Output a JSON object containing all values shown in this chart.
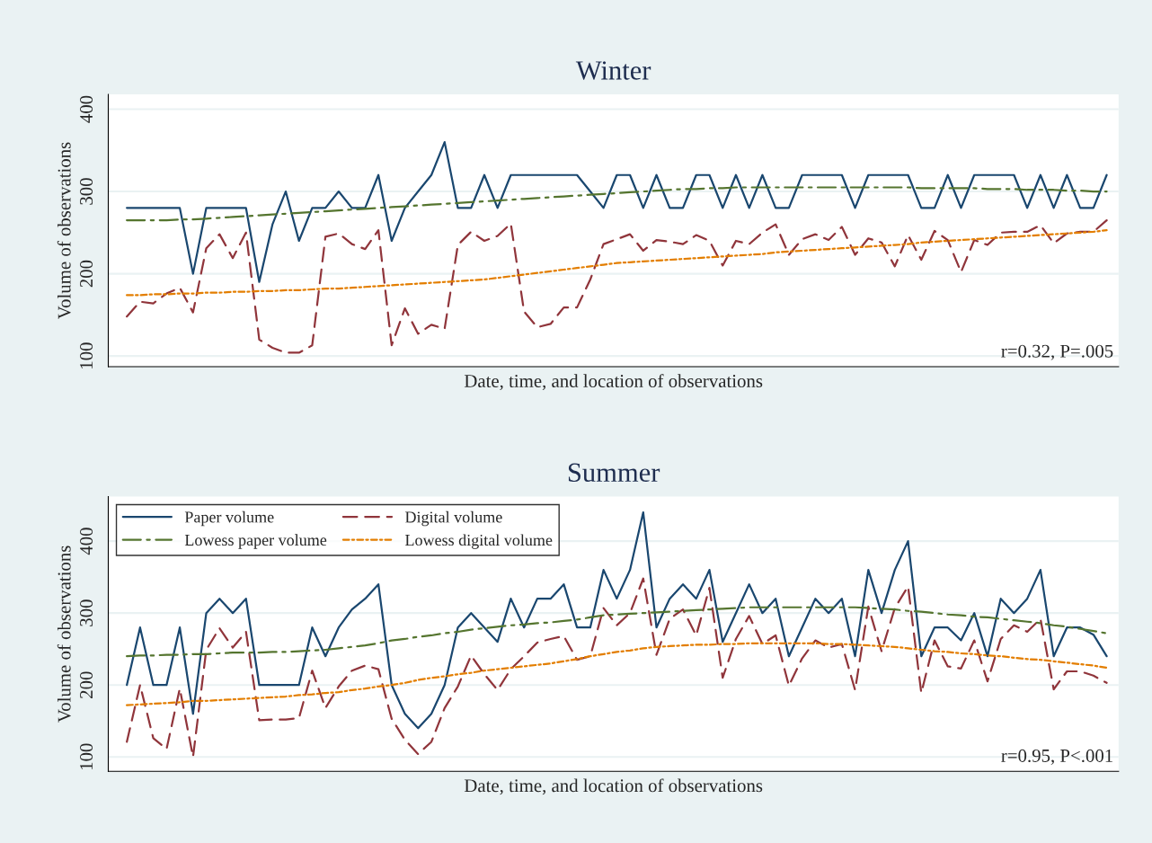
{
  "chart_data": [
    {
      "type": "line",
      "title": "Winter",
      "xlabel": "Date, time, and location of observations",
      "ylabel": "Volume of observations",
      "categories": [
        null,
        null,
        null,
        null,
        null,
        null,
        null,
        null,
        null,
        null,
        null,
        null,
        null,
        null,
        null,
        null,
        null,
        null,
        null,
        null,
        null,
        null,
        null,
        null,
        null,
        null,
        null,
        null,
        null,
        null,
        null,
        null,
        null,
        null,
        null,
        null,
        null,
        null,
        null,
        null,
        null,
        null,
        null,
        null,
        null,
        null,
        null,
        null,
        null,
        null,
        null,
        null,
        null,
        null,
        null,
        null,
        null,
        null,
        null,
        null,
        null,
        null,
        null,
        null,
        null,
        null,
        null,
        null,
        null,
        null,
        null,
        null,
        null,
        null,
        null
      ],
      "series": [
        {
          "color": "#1a476f",
          "line_style": "solid",
          "values": [
            280,
            280,
            280,
            280,
            280,
            200,
            280,
            280,
            280,
            280,
            190,
            260,
            300,
            240,
            280,
            280,
            300,
            280,
            280,
            320,
            240,
            280,
            300,
            320,
            360,
            280,
            280,
            320,
            280,
            320,
            320,
            320,
            320,
            320,
            320,
            300,
            280,
            320,
            320,
            280,
            320,
            280,
            280,
            320,
            320,
            280,
            320,
            280,
            320,
            280,
            280,
            320,
            320,
            320,
            320,
            280,
            320,
            320,
            320,
            320,
            280,
            280,
            320,
            280,
            320,
            320,
            320,
            320,
            280,
            320,
            280,
            320,
            280,
            280,
            320
          ]
        },
        {
          "color": "#90353b",
          "line_style": "dashed",
          "values": [
            148,
            166,
            164,
            176,
            183,
            153,
            231,
            248,
            219,
            250,
            120,
            110,
            104,
            104,
            113,
            245,
            249,
            236,
            230,
            253,
            113,
            158,
            127,
            138,
            133,
            235,
            251,
            240,
            246,
            261,
            154,
            135,
            139,
            159,
            159,
            193,
            236,
            242,
            248,
            228,
            241,
            239,
            236,
            247,
            240,
            210,
            240,
            236,
            250,
            260,
            223,
            242,
            248,
            241,
            257,
            223,
            243,
            238,
            209,
            247,
            217,
            252,
            241,
            202,
            241,
            235,
            250,
            251,
            251,
            259,
            237,
            249,
            251,
            251,
            265
          ]
        },
        {
          "color": "#55752f",
          "line_style": "dashdot",
          "values": [
            265,
            265,
            265,
            265,
            266,
            266,
            267,
            268,
            269,
            270,
            271,
            272,
            273,
            274,
            275,
            276,
            277,
            278,
            279,
            280,
            281,
            282,
            283,
            284,
            285,
            286,
            287,
            288,
            289,
            290,
            291,
            292,
            293,
            294,
            295,
            296,
            297,
            298,
            299,
            300,
            301,
            302,
            303,
            303,
            304,
            304,
            305,
            305,
            305,
            305,
            305,
            305,
            305,
            305,
            305,
            305,
            305,
            305,
            305,
            305,
            304,
            304,
            304,
            304,
            304,
            303,
            303,
            303,
            302,
            302,
            302,
            301,
            301,
            300,
            300
          ]
        },
        {
          "color": "#e37e00",
          "line_style": "dashdotdot",
          "values": [
            174,
            174,
            175,
            175,
            176,
            176,
            177,
            177,
            178,
            178,
            179,
            179,
            180,
            180,
            181,
            182,
            182,
            183,
            184,
            185,
            186,
            187,
            188,
            189,
            190,
            191,
            192,
            193,
            195,
            197,
            199,
            201,
            203,
            205,
            207,
            209,
            211,
            213,
            214,
            215,
            216,
            217,
            218,
            219,
            220,
            221,
            222,
            223,
            224,
            226,
            227,
            228,
            229,
            230,
            231,
            232,
            233,
            234,
            235,
            236,
            238,
            239,
            240,
            241,
            242,
            243,
            244,
            245,
            246,
            247,
            248,
            249,
            250,
            251,
            253
          ]
        }
      ],
      "ylim": [
        87,
        418
      ],
      "yticks": [
        100,
        200,
        300,
        400
      ],
      "grid": "y",
      "tick_labels": "y",
      "legend": false,
      "annotations": [
        "r=0.32, P=.005"
      ]
    },
    {
      "type": "line",
      "title": "Summer",
      "xlabel": "Date, time, and location of observations",
      "ylabel": "Volume of observations",
      "categories": [
        null,
        null,
        null,
        null,
        null,
        null,
        null,
        null,
        null,
        null,
        null,
        null,
        null,
        null,
        null,
        null,
        null,
        null,
        null,
        null,
        null,
        null,
        null,
        null,
        null,
        null,
        null,
        null,
        null,
        null,
        null,
        null,
        null,
        null,
        null,
        null,
        null,
        null,
        null,
        null,
        null,
        null,
        null,
        null,
        null,
        null,
        null,
        null,
        null,
        null,
        null,
        null,
        null,
        null,
        null,
        null,
        null,
        null,
        null,
        null,
        null,
        null,
        null,
        null,
        null,
        null,
        null,
        null,
        null,
        null,
        null,
        null,
        null,
        null,
        null
      ],
      "series": [
        {
          "name": "Paper volume",
          "color": "#1a476f",
          "line_style": "solid",
          "values": [
            200,
            280,
            200,
            200,
            280,
            160,
            300,
            320,
            300,
            320,
            200,
            200,
            200,
            200,
            280,
            240,
            280,
            305,
            320,
            340,
            200,
            160,
            140,
            160,
            200,
            280,
            300,
            280,
            260,
            320,
            280,
            320,
            320,
            340,
            280,
            280,
            360,
            320,
            360,
            440,
            280,
            320,
            340,
            320,
            360,
            260,
            300,
            340,
            300,
            320,
            240,
            280,
            320,
            300,
            320,
            240,
            360,
            300,
            360,
            400,
            240,
            280,
            280,
            262,
            300,
            240,
            320,
            300,
            320,
            360,
            240,
            280,
            280,
            270,
            240
          ]
        },
        {
          "name": "Digital volume",
          "color": "#90353b",
          "line_style": "dashed",
          "values": [
            121,
            200,
            126,
            111,
            195,
            100,
            249,
            279,
            252,
            274,
            151,
            152,
            152,
            154,
            220,
            168,
            198,
            220,
            227,
            222,
            153,
            124,
            104,
            121,
            168,
            198,
            241,
            215,
            193,
            222,
            240,
            259,
            264,
            268,
            235,
            240,
            307,
            283,
            300,
            348,
            242,
            292,
            305,
            269,
            335,
            210,
            264,
            296,
            257,
            269,
            199,
            237,
            262,
            252,
            257,
            193,
            309,
            247,
            307,
            337,
            189,
            262,
            226,
            223,
            262,
            205,
            264,
            283,
            274,
            292,
            194,
            219,
            219,
            213,
            203
          ]
        },
        {
          "name": "Lowess paper volume",
          "color": "#55752f",
          "line_style": "dashdot",
          "values": [
            240,
            241,
            241,
            242,
            242,
            243,
            243,
            244,
            245,
            245,
            245,
            246,
            246,
            247,
            248,
            249,
            251,
            253,
            255,
            258,
            262,
            264,
            267,
            269,
            272,
            274,
            277,
            279,
            281,
            283,
            284,
            286,
            287,
            289,
            291,
            294,
            297,
            298,
            299,
            300,
            301,
            302,
            303,
            304,
            305,
            306,
            307,
            308,
            308,
            308,
            308,
            308,
            308,
            308,
            308,
            308,
            307,
            306,
            305,
            303,
            302,
            300,
            298,
            297,
            295,
            294,
            292,
            290,
            288,
            286,
            283,
            281,
            278,
            275,
            272
          ]
        },
        {
          "name": "Lowess digital volume",
          "color": "#e37e00",
          "line_style": "dashdotdot",
          "values": [
            172,
            173,
            174,
            175,
            176,
            178,
            178,
            179,
            180,
            181,
            182,
            183,
            184,
            186,
            187,
            189,
            190,
            193,
            195,
            198,
            200,
            203,
            207,
            210,
            212,
            215,
            217,
            220,
            222,
            224,
            226,
            228,
            230,
            233,
            236,
            240,
            243,
            246,
            248,
            251,
            253,
            254,
            255,
            256,
            256,
            257,
            257,
            258,
            258,
            258,
            258,
            258,
            258,
            257,
            257,
            256,
            255,
            254,
            253,
            251,
            249,
            247,
            246,
            244,
            243,
            241,
            240,
            238,
            236,
            235,
            233,
            231,
            229,
            227,
            224
          ]
        }
      ],
      "ylim": [
        80,
        462
      ],
      "yticks": [
        100,
        200,
        300,
        400
      ],
      "grid": "y",
      "tick_labels": "y",
      "legend": "top left",
      "annotations": [
        "r=0.95, P<.001"
      ]
    }
  ]
}
